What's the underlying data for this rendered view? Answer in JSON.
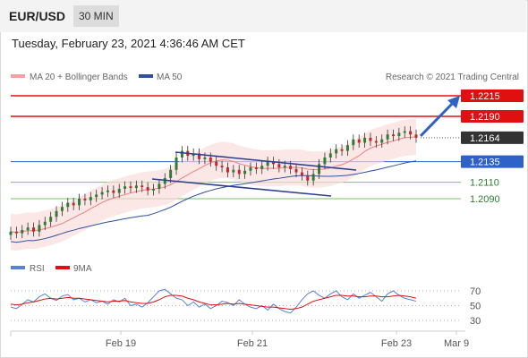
{
  "header": {
    "symbol": "EUR/USD",
    "timeframe": "30 MIN"
  },
  "datetime": "Tuesday, February 23, 2021 4:36:46 AM CET",
  "legend": {
    "ma_bb": "MA 20 + Bollinger Bands",
    "ma50": "MA 50",
    "credit": "Research © 2021 Trading Central"
  },
  "rsi_legend": {
    "rsi": "RSI",
    "ma": "9MA"
  },
  "colors": {
    "resistance": "#e01010",
    "support_blue": "#2f62c8",
    "support_green": "#7cbf6a",
    "current": "#333333",
    "ma_bb": "#f08080",
    "ma50": "#2f4f9f",
    "rsi": "#5b82d8",
    "rsi_ma": "#e01010",
    "candle_up": "#2e7d32",
    "candle_down": "#c62828"
  },
  "chart_data": {
    "type": "candlestick",
    "price_levels": [
      {
        "name": "resistance-2",
        "value": 1.2215,
        "label": "1.2215",
        "style": "red"
      },
      {
        "name": "resistance-1",
        "value": 1.219,
        "label": "1.2190",
        "style": "red"
      },
      {
        "name": "current-price",
        "value": 1.2164,
        "label": "1.2164",
        "style": "current"
      },
      {
        "name": "pivot",
        "value": 1.2135,
        "label": "1.2135",
        "style": "blue"
      },
      {
        "name": "support-1",
        "value": 1.211,
        "label": "1.2110",
        "style": "green"
      },
      {
        "name": "support-2",
        "value": 1.209,
        "label": "1.2090",
        "style": "green"
      }
    ],
    "price_close_series": [
      1.205,
      1.2048,
      1.2052,
      1.2055,
      1.205,
      1.2058,
      1.2062,
      1.2068,
      1.2075,
      1.208,
      1.2085,
      1.2082,
      1.209,
      1.2088,
      1.2092,
      1.2095,
      1.2098,
      1.21,
      1.2097,
      1.2102,
      1.2105,
      1.2103,
      1.2106,
      1.2104,
      1.21,
      1.2102,
      1.2108,
      1.2115,
      1.2125,
      1.214,
      1.2148,
      1.2142,
      1.2145,
      1.2138,
      1.214,
      1.2135,
      1.213,
      1.2128,
      1.2122,
      1.2125,
      1.212,
      1.2124,
      1.2128,
      1.2126,
      1.213,
      1.2135,
      1.2132,
      1.2128,
      1.213,
      1.2126,
      1.2122,
      1.2118,
      1.2112,
      1.212,
      1.2132,
      1.214,
      1.2145,
      1.215,
      1.2148,
      1.2155,
      1.2162,
      1.2158,
      1.2164,
      1.216,
      1.2158,
      1.2162,
      1.2168,
      1.2166,
      1.217,
      1.2172,
      1.2168,
      1.2164
    ],
    "forecast_target": 1.2215,
    "x_ticks": [
      "Feb 19",
      "Feb 21",
      "Feb 23",
      "Mar 9"
    ],
    "rsi": {
      "levels": [
        70,
        50,
        30
      ],
      "labels": [
        "70",
        "50",
        "30"
      ],
      "series": [
        48,
        46,
        52,
        58,
        55,
        62,
        66,
        60,
        57,
        63,
        65,
        58,
        60,
        55,
        58,
        54,
        56,
        52,
        58,
        55,
        60,
        50,
        52,
        48,
        54,
        62,
        70,
        72,
        66,
        60,
        58,
        50,
        55,
        48,
        52,
        46,
        50,
        56,
        54,
        50,
        58,
        52,
        48,
        46,
        50,
        44,
        52,
        46,
        42,
        40,
        48,
        58,
        66,
        70,
        64,
        60,
        66,
        70,
        62,
        58,
        66,
        60,
        64,
        68,
        62,
        56,
        66,
        70,
        64,
        60,
        58,
        56
      ],
      "ma_series": [
        52,
        51,
        52,
        54,
        55,
        57,
        59,
        60,
        59,
        60,
        61,
        60,
        60,
        59,
        58,
        57,
        56,
        55,
        56,
        56,
        57,
        55,
        54,
        53,
        53,
        55,
        58,
        62,
        64,
        64,
        63,
        60,
        58,
        55,
        53,
        51,
        51,
        52,
        53,
        52,
        53,
        52,
        51,
        50,
        49,
        48,
        48,
        47,
        46,
        45,
        46,
        48,
        52,
        56,
        58,
        60,
        62,
        64,
        64,
        63,
        63,
        62,
        62,
        63,
        63,
        62,
        62,
        63,
        64,
        63,
        62,
        60
      ]
    }
  }
}
